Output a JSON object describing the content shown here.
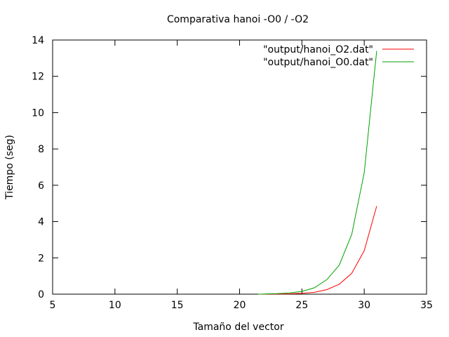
{
  "chart_data": {
    "type": "line",
    "title": "Comparativa hanoi -O0 / -O2",
    "xlabel": "Tamaño del vector",
    "ylabel": "Tiempo (seg)",
    "xlim": [
      5,
      35
    ],
    "ylim": [
      0,
      14
    ],
    "xticks": [
      5,
      10,
      15,
      20,
      25,
      30,
      35
    ],
    "yticks": [
      0,
      2,
      4,
      6,
      8,
      10,
      12,
      14
    ],
    "grid": false,
    "legend_position": "top-right",
    "series": [
      {
        "name": "\"output/hanoi_O2.dat\"",
        "color": "#ff0000",
        "x": [
          21.5,
          22,
          23,
          24,
          25,
          26,
          27,
          28,
          29,
          30,
          31
        ],
        "y": [
          0.0,
          0.0,
          0.01,
          0.02,
          0.05,
          0.1,
          0.25,
          0.55,
          1.15,
          2.4,
          4.85
        ]
      },
      {
        "name": "\"output/hanoi_O0.dat\"",
        "color": "#00a000",
        "x": [
          21.5,
          22,
          23,
          24,
          25,
          26,
          27,
          28,
          29,
          30,
          31
        ],
        "y": [
          0.0,
          0.01,
          0.03,
          0.07,
          0.15,
          0.35,
          0.8,
          1.6,
          3.3,
          6.7,
          13.4
        ]
      }
    ]
  }
}
